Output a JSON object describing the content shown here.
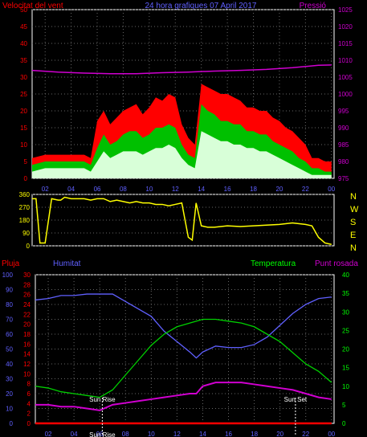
{
  "title": "24 hora grafiques  07 April 2017",
  "colors": {
    "bg": "#000000",
    "frame": "#ffffff",
    "grid": "#666666",
    "wind": "#ff0000",
    "windAvg": "#00c000",
    "windLow": "#d8ffd8",
    "pressure": "#d000d0",
    "direction": "#ffff00",
    "humidity": "#6060ff",
    "temperature": "#00d000",
    "dewpoint": "#d000d0",
    "rain": "#ff0000",
    "sun": "#ffffff",
    "green": "#00ff00"
  },
  "chart_data": [
    {
      "type": "line",
      "labels": {
        "left": "Velocitat del vent",
        "right": "Pressió"
      },
      "x_ticks": [
        "02",
        "04",
        "06",
        "08",
        "10",
        "12",
        "14",
        "16",
        "18",
        "20",
        "22",
        "00"
      ],
      "x_range": [
        1,
        24
      ],
      "y_left": {
        "range": [
          0,
          50
        ],
        "ticks": [
          0,
          5,
          10,
          15,
          20,
          25,
          30,
          35,
          40,
          45,
          50
        ]
      },
      "y_right": {
        "range": [
          975,
          1025
        ],
        "ticks": [
          975,
          980,
          985,
          990,
          995,
          1000,
          1005,
          1010,
          1015,
          1020,
          1025
        ]
      },
      "series": [
        {
          "key": "gust",
          "axis": "left",
          "x": [
            1,
            2,
            3,
            4,
            5,
            5.5,
            6,
            6.5,
            7,
            7.5,
            8,
            8.5,
            9,
            9.5,
            10,
            10.5,
            11,
            11.5,
            12,
            12.5,
            13,
            13.5,
            14,
            14.5,
            15,
            15.5,
            16,
            16.5,
            17,
            17.5,
            18,
            18.5,
            19,
            19.5,
            20,
            20.5,
            21,
            21.5,
            22,
            22.5,
            23,
            23.5,
            24
          ],
          "y": [
            6,
            7,
            7,
            7,
            7,
            6,
            17,
            20,
            16,
            18,
            20,
            21,
            22,
            19,
            21,
            24,
            23,
            25,
            24,
            16,
            12,
            10,
            28,
            27,
            26,
            25,
            25,
            24,
            23,
            21,
            21,
            20,
            20,
            18,
            17,
            15,
            14,
            12,
            10,
            6,
            6,
            5,
            5
          ]
        },
        {
          "key": "avg",
          "axis": "left",
          "x": [
            1,
            2,
            3,
            4,
            5,
            5.5,
            6,
            6.5,
            7,
            7.5,
            8,
            8.5,
            9,
            9.5,
            10,
            10.5,
            11,
            11.5,
            12,
            12.5,
            13,
            13.5,
            14,
            14.5,
            15,
            15.5,
            16,
            16.5,
            17,
            17.5,
            18,
            18.5,
            19,
            19.5,
            20,
            20.5,
            21,
            21.5,
            22,
            22.5,
            23,
            23.5,
            24
          ],
          "y": [
            4,
            5,
            5,
            5,
            5,
            4,
            9,
            13,
            10,
            11,
            13,
            14,
            14,
            12,
            13,
            15,
            15,
            16,
            15,
            10,
            7,
            6,
            22,
            20,
            19,
            17,
            17,
            16,
            16,
            14,
            14,
            13,
            13,
            11,
            10,
            9,
            8,
            6,
            5,
            3,
            3,
            2,
            2
          ]
        },
        {
          "key": "low",
          "axis": "left",
          "x": [
            1,
            2,
            3,
            4,
            5,
            5.5,
            6,
            6.5,
            7,
            7.5,
            8,
            8.5,
            9,
            9.5,
            10,
            10.5,
            11,
            11.5,
            12,
            12.5,
            13,
            13.5,
            14,
            14.5,
            15,
            15.5,
            16,
            16.5,
            17,
            17.5,
            18,
            18.5,
            19,
            19.5,
            20,
            20.5,
            21,
            21.5,
            22,
            22.5,
            23,
            23.5,
            24
          ],
          "y": [
            2,
            3,
            3,
            3,
            3,
            2,
            5,
            8,
            6,
            7,
            8,
            8,
            8,
            7,
            8,
            9,
            9,
            10,
            9,
            6,
            4,
            3,
            14,
            13,
            12,
            11,
            11,
            10,
            10,
            9,
            9,
            8,
            8,
            7,
            6,
            5,
            4,
            3,
            2,
            1,
            1,
            1,
            1
          ]
        },
        {
          "key": "pressure",
          "axis": "right",
          "x": [
            1,
            3,
            5,
            7,
            9,
            11,
            13,
            15,
            17,
            19,
            21,
            23,
            24
          ],
          "y": [
            1007,
            1006.5,
            1006.2,
            1006,
            1006,
            1006.3,
            1006.5,
            1006.8,
            1007,
            1007.3,
            1007.8,
            1008.5,
            1008.6
          ]
        }
      ]
    },
    {
      "type": "scatter",
      "labels": {
        "right": [
          "N",
          "W",
          "S",
          "E",
          "N"
        ]
      },
      "y_range": [
        0,
        360
      ],
      "y_ticks": [
        0,
        90,
        180,
        270,
        360
      ],
      "series": [
        {
          "key": "direction",
          "x": [
            1,
            1.3,
            1.6,
            2,
            2.5,
            3,
            3.2,
            3.5,
            4,
            4.5,
            5,
            5.5,
            6,
            6.5,
            7,
            7.5,
            8,
            8.5,
            9,
            9.5,
            10,
            10.5,
            11,
            11.5,
            12,
            12.5,
            13,
            13.3,
            13.6,
            14,
            14.5,
            15,
            16,
            17,
            18,
            19,
            20,
            21,
            22,
            22.5,
            23,
            23.5,
            24
          ],
          "y": [
            330,
            330,
            20,
            20,
            330,
            320,
            320,
            340,
            330,
            330,
            330,
            320,
            330,
            330,
            310,
            320,
            310,
            300,
            310,
            300,
            300,
            290,
            290,
            280,
            290,
            300,
            60,
            40,
            300,
            140,
            130,
            130,
            140,
            135,
            140,
            145,
            150,
            160,
            150,
            140,
            60,
            20,
            10
          ]
        }
      ]
    },
    {
      "type": "line",
      "labels": {
        "rain": "Pluja",
        "humidity": "Humitat",
        "temperature": "Temperatura",
        "dewpoint": "Punt rosada",
        "sunrise": "Sun Rise",
        "sunset": "Sun Set"
      },
      "sunrise_hour": 6.2,
      "sunset_hour": 21.2,
      "x_ticks": [
        "02",
        "04",
        "06",
        "08",
        "10",
        "12",
        "14",
        "16",
        "18",
        "20",
        "22",
        "00"
      ],
      "y_humidity": {
        "range": [
          0,
          100
        ],
        "ticks": [
          0,
          10,
          20,
          30,
          40,
          50,
          60,
          70,
          80,
          90,
          100
        ]
      },
      "y_rain": {
        "range": [
          0,
          30
        ],
        "ticks": [
          0,
          2,
          4,
          6,
          8,
          10,
          12,
          14,
          16,
          18,
          20,
          22,
          24,
          26,
          28,
          30
        ]
      },
      "y_temp": {
        "range": [
          0,
          40
        ],
        "ticks": [
          0,
          5,
          10,
          15,
          20,
          25,
          30,
          35,
          40
        ]
      },
      "series": [
        {
          "key": "humidity",
          "x": [
            1,
            2,
            3,
            4,
            5,
            6,
            7,
            8,
            9,
            10,
            11,
            12,
            13,
            13.5,
            14,
            15,
            16,
            17,
            18,
            19,
            20,
            21,
            22,
            23,
            24
          ],
          "y": [
            83,
            84,
            86,
            86,
            87,
            87,
            87,
            82,
            77,
            72,
            62,
            55,
            48,
            44,
            48,
            52,
            51,
            51,
            53,
            58,
            66,
            74,
            80,
            84,
            85
          ]
        },
        {
          "key": "temperature",
          "x": [
            1,
            2,
            3,
            4,
            5,
            6,
            7,
            8,
            9,
            10,
            11,
            12,
            13,
            14,
            15,
            16,
            17,
            18,
            19,
            20,
            21,
            22,
            23,
            24
          ],
          "y": [
            10,
            9.5,
            8.5,
            8,
            7.5,
            7,
            9,
            13,
            17,
            21,
            24,
            26,
            27,
            28,
            28,
            27.5,
            27,
            26,
            24,
            22,
            19,
            16,
            14,
            11
          ]
        },
        {
          "key": "dewpoint",
          "x": [
            1,
            2,
            3,
            4,
            5,
            6,
            7,
            8,
            9,
            10,
            11,
            12,
            13,
            13.5,
            14,
            15,
            16,
            17,
            18,
            19,
            20,
            21,
            22,
            23,
            24
          ],
          "y": [
            5,
            5,
            4.5,
            4.5,
            4,
            3.5,
            5,
            5.5,
            6,
            6.5,
            7,
            7.5,
            8,
            8,
            10,
            11,
            11,
            11,
            10.5,
            10,
            9.5,
            9,
            8,
            7,
            6.5
          ]
        },
        {
          "key": "rain",
          "x": [
            1,
            24
          ],
          "y": [
            0,
            0
          ]
        }
      ]
    }
  ]
}
